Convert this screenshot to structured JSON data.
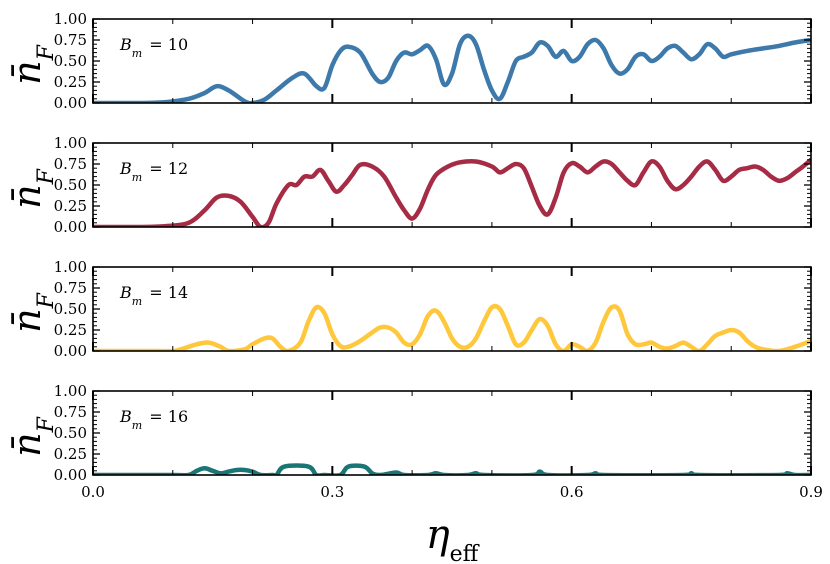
{
  "chart_data": {
    "type": "line",
    "xlabel": "η",
    "xlabel_subscript": "eff",
    "ylabel": "n̄",
    "ylabel_subscript": "F",
    "xlim": [
      0.0,
      0.9
    ],
    "ylim": [
      0.0,
      1.0
    ],
    "x_ticks": [
      "0.0",
      "0.3",
      "0.6",
      "0.9"
    ],
    "y_ticks": [
      "0.00",
      "0.25",
      "0.50",
      "0.75",
      "1.00"
    ],
    "series": [
      {
        "name": "B_m = 10",
        "label_base": "B",
        "label_sub": "m",
        "label_rest": " = 10",
        "color": "#3d7aab",
        "points": [
          [
            0.0,
            0.0
          ],
          [
            0.05,
            0.0
          ],
          [
            0.09,
            0.01
          ],
          [
            0.12,
            0.05
          ],
          [
            0.14,
            0.12
          ],
          [
            0.155,
            0.2
          ],
          [
            0.17,
            0.15
          ],
          [
            0.19,
            0.02
          ],
          [
            0.2,
            0.0
          ],
          [
            0.215,
            0.04
          ],
          [
            0.23,
            0.15
          ],
          [
            0.25,
            0.3
          ],
          [
            0.265,
            0.35
          ],
          [
            0.28,
            0.2
          ],
          [
            0.29,
            0.18
          ],
          [
            0.3,
            0.45
          ],
          [
            0.31,
            0.62
          ],
          [
            0.32,
            0.67
          ],
          [
            0.335,
            0.6
          ],
          [
            0.35,
            0.35
          ],
          [
            0.36,
            0.25
          ],
          [
            0.37,
            0.3
          ],
          [
            0.38,
            0.5
          ],
          [
            0.39,
            0.6
          ],
          [
            0.4,
            0.58
          ],
          [
            0.41,
            0.63
          ],
          [
            0.42,
            0.68
          ],
          [
            0.43,
            0.52
          ],
          [
            0.44,
            0.22
          ],
          [
            0.45,
            0.35
          ],
          [
            0.46,
            0.7
          ],
          [
            0.47,
            0.8
          ],
          [
            0.48,
            0.7
          ],
          [
            0.49,
            0.4
          ],
          [
            0.5,
            0.15
          ],
          [
            0.51,
            0.05
          ],
          [
            0.52,
            0.25
          ],
          [
            0.53,
            0.5
          ],
          [
            0.54,
            0.55
          ],
          [
            0.55,
            0.6
          ],
          [
            0.56,
            0.72
          ],
          [
            0.57,
            0.68
          ],
          [
            0.58,
            0.55
          ],
          [
            0.59,
            0.62
          ],
          [
            0.6,
            0.5
          ],
          [
            0.61,
            0.55
          ],
          [
            0.62,
            0.7
          ],
          [
            0.63,
            0.75
          ],
          [
            0.64,
            0.65
          ],
          [
            0.65,
            0.45
          ],
          [
            0.66,
            0.35
          ],
          [
            0.67,
            0.4
          ],
          [
            0.68,
            0.55
          ],
          [
            0.69,
            0.58
          ],
          [
            0.7,
            0.5
          ],
          [
            0.71,
            0.55
          ],
          [
            0.72,
            0.65
          ],
          [
            0.73,
            0.68
          ],
          [
            0.74,
            0.6
          ],
          [
            0.75,
            0.52
          ],
          [
            0.76,
            0.58
          ],
          [
            0.77,
            0.7
          ],
          [
            0.78,
            0.65
          ],
          [
            0.79,
            0.55
          ],
          [
            0.8,
            0.58
          ],
          [
            0.82,
            0.62
          ],
          [
            0.84,
            0.65
          ],
          [
            0.86,
            0.68
          ],
          [
            0.88,
            0.72
          ],
          [
            0.9,
            0.75
          ]
        ]
      },
      {
        "name": "B_m = 12",
        "label_base": "B",
        "label_sub": "m",
        "label_rest": " = 12",
        "color": "#a62b45",
        "points": [
          [
            0.0,
            0.0
          ],
          [
            0.05,
            0.0
          ],
          [
            0.09,
            0.01
          ],
          [
            0.12,
            0.05
          ],
          [
            0.14,
            0.2
          ],
          [
            0.155,
            0.35
          ],
          [
            0.17,
            0.37
          ],
          [
            0.185,
            0.3
          ],
          [
            0.2,
            0.12
          ],
          [
            0.21,
            0.0
          ],
          [
            0.22,
            0.05
          ],
          [
            0.23,
            0.28
          ],
          [
            0.245,
            0.5
          ],
          [
            0.255,
            0.5
          ],
          [
            0.265,
            0.6
          ],
          [
            0.275,
            0.6
          ],
          [
            0.285,
            0.68
          ],
          [
            0.295,
            0.55
          ],
          [
            0.305,
            0.42
          ],
          [
            0.315,
            0.5
          ],
          [
            0.325,
            0.62
          ],
          [
            0.335,
            0.74
          ],
          [
            0.35,
            0.72
          ],
          [
            0.365,
            0.6
          ],
          [
            0.38,
            0.35
          ],
          [
            0.39,
            0.2
          ],
          [
            0.4,
            0.1
          ],
          [
            0.41,
            0.22
          ],
          [
            0.42,
            0.45
          ],
          [
            0.43,
            0.62
          ],
          [
            0.445,
            0.72
          ],
          [
            0.46,
            0.77
          ],
          [
            0.48,
            0.78
          ],
          [
            0.5,
            0.72
          ],
          [
            0.51,
            0.65
          ],
          [
            0.52,
            0.7
          ],
          [
            0.53,
            0.75
          ],
          [
            0.54,
            0.7
          ],
          [
            0.55,
            0.48
          ],
          [
            0.56,
            0.25
          ],
          [
            0.57,
            0.15
          ],
          [
            0.58,
            0.35
          ],
          [
            0.59,
            0.65
          ],
          [
            0.6,
            0.76
          ],
          [
            0.61,
            0.72
          ],
          [
            0.62,
            0.65
          ],
          [
            0.63,
            0.72
          ],
          [
            0.64,
            0.78
          ],
          [
            0.65,
            0.75
          ],
          [
            0.66,
            0.65
          ],
          [
            0.67,
            0.55
          ],
          [
            0.68,
            0.5
          ],
          [
            0.69,
            0.65
          ],
          [
            0.7,
            0.78
          ],
          [
            0.71,
            0.72
          ],
          [
            0.72,
            0.55
          ],
          [
            0.73,
            0.45
          ],
          [
            0.74,
            0.5
          ],
          [
            0.75,
            0.6
          ],
          [
            0.76,
            0.72
          ],
          [
            0.77,
            0.78
          ],
          [
            0.78,
            0.68
          ],
          [
            0.79,
            0.55
          ],
          [
            0.8,
            0.6
          ],
          [
            0.81,
            0.68
          ],
          [
            0.82,
            0.7
          ],
          [
            0.83,
            0.72
          ],
          [
            0.84,
            0.68
          ],
          [
            0.85,
            0.6
          ],
          [
            0.86,
            0.55
          ],
          [
            0.87,
            0.58
          ],
          [
            0.88,
            0.65
          ],
          [
            0.89,
            0.72
          ],
          [
            0.9,
            0.8
          ]
        ]
      },
      {
        "name": "B_m = 14",
        "label_base": "B",
        "label_sub": "m",
        "label_rest": " = 14",
        "color": "#ffc83c",
        "points": [
          [
            0.0,
            0.0
          ],
          [
            0.08,
            0.0
          ],
          [
            0.1,
            0.0
          ],
          [
            0.11,
            0.02
          ],
          [
            0.13,
            0.08
          ],
          [
            0.145,
            0.1
          ],
          [
            0.16,
            0.05
          ],
          [
            0.17,
            0.0
          ],
          [
            0.19,
            0.02
          ],
          [
            0.2,
            0.08
          ],
          [
            0.215,
            0.15
          ],
          [
            0.225,
            0.15
          ],
          [
            0.235,
            0.05
          ],
          [
            0.245,
            0.0
          ],
          [
            0.26,
            0.1
          ],
          [
            0.27,
            0.35
          ],
          [
            0.28,
            0.52
          ],
          [
            0.29,
            0.45
          ],
          [
            0.3,
            0.2
          ],
          [
            0.31,
            0.06
          ],
          [
            0.32,
            0.05
          ],
          [
            0.335,
            0.12
          ],
          [
            0.35,
            0.22
          ],
          [
            0.36,
            0.28
          ],
          [
            0.37,
            0.28
          ],
          [
            0.38,
            0.22
          ],
          [
            0.39,
            0.1
          ],
          [
            0.4,
            0.08
          ],
          [
            0.41,
            0.2
          ],
          [
            0.42,
            0.42
          ],
          [
            0.43,
            0.48
          ],
          [
            0.44,
            0.35
          ],
          [
            0.45,
            0.15
          ],
          [
            0.46,
            0.05
          ],
          [
            0.47,
            0.05
          ],
          [
            0.48,
            0.15
          ],
          [
            0.49,
            0.35
          ],
          [
            0.5,
            0.52
          ],
          [
            0.51,
            0.5
          ],
          [
            0.52,
            0.3
          ],
          [
            0.53,
            0.08
          ],
          [
            0.54,
            0.1
          ],
          [
            0.55,
            0.25
          ],
          [
            0.56,
            0.38
          ],
          [
            0.57,
            0.3
          ],
          [
            0.58,
            0.08
          ],
          [
            0.59,
            0.0
          ],
          [
            0.6,
            0.08
          ],
          [
            0.61,
            0.05
          ],
          [
            0.62,
            0.0
          ],
          [
            0.63,
            0.1
          ],
          [
            0.64,
            0.35
          ],
          [
            0.65,
            0.52
          ],
          [
            0.66,
            0.48
          ],
          [
            0.67,
            0.2
          ],
          [
            0.68,
            0.08
          ],
          [
            0.69,
            0.08
          ],
          [
            0.7,
            0.1
          ],
          [
            0.71,
            0.05
          ],
          [
            0.72,
            0.03
          ],
          [
            0.73,
            0.06
          ],
          [
            0.74,
            0.1
          ],
          [
            0.75,
            0.05
          ],
          [
            0.76,
            0.0
          ],
          [
            0.77,
            0.08
          ],
          [
            0.78,
            0.18
          ],
          [
            0.79,
            0.22
          ],
          [
            0.8,
            0.25
          ],
          [
            0.81,
            0.22
          ],
          [
            0.82,
            0.12
          ],
          [
            0.83,
            0.05
          ],
          [
            0.84,
            0.02
          ],
          [
            0.86,
            0.0
          ],
          [
            0.88,
            0.05
          ],
          [
            0.9,
            0.12
          ]
        ]
      },
      {
        "name": "B_m = 16",
        "label_base": "B",
        "label_sub": "m",
        "label_rest": " = 16",
        "color": "#1a7575",
        "points": [
          [
            0.0,
            0.0
          ],
          [
            0.1,
            0.0
          ],
          [
            0.12,
            0.0
          ],
          [
            0.13,
            0.05
          ],
          [
            0.14,
            0.08
          ],
          [
            0.15,
            0.05
          ],
          [
            0.16,
            0.02
          ],
          [
            0.17,
            0.04
          ],
          [
            0.18,
            0.06
          ],
          [
            0.19,
            0.06
          ],
          [
            0.2,
            0.04
          ],
          [
            0.21,
            0.0
          ],
          [
            0.225,
            0.0
          ],
          [
            0.23,
            0.0
          ],
          [
            0.24,
            0.1
          ],
          [
            0.27,
            0.1
          ],
          [
            0.28,
            0.0
          ],
          [
            0.29,
            0.0
          ],
          [
            0.31,
            0.0
          ],
          [
            0.32,
            0.1
          ],
          [
            0.34,
            0.1
          ],
          [
            0.35,
            0.02
          ],
          [
            0.36,
            0.0
          ],
          [
            0.38,
            0.03
          ],
          [
            0.39,
            0.0
          ],
          [
            0.42,
            0.0
          ],
          [
            0.43,
            0.02
          ],
          [
            0.44,
            0.0
          ],
          [
            0.47,
            0.0
          ],
          [
            0.48,
            0.02
          ],
          [
            0.49,
            0.0
          ],
          [
            0.55,
            0.0
          ],
          [
            0.56,
            0.04
          ],
          [
            0.57,
            0.0
          ],
          [
            0.62,
            0.0
          ],
          [
            0.63,
            0.02
          ],
          [
            0.64,
            0.0
          ],
          [
            0.74,
            0.0
          ],
          [
            0.75,
            0.02
          ],
          [
            0.76,
            0.0
          ],
          [
            0.86,
            0.0
          ],
          [
            0.87,
            0.02
          ],
          [
            0.88,
            0.0
          ],
          [
            0.9,
            0.0
          ]
        ]
      }
    ]
  }
}
